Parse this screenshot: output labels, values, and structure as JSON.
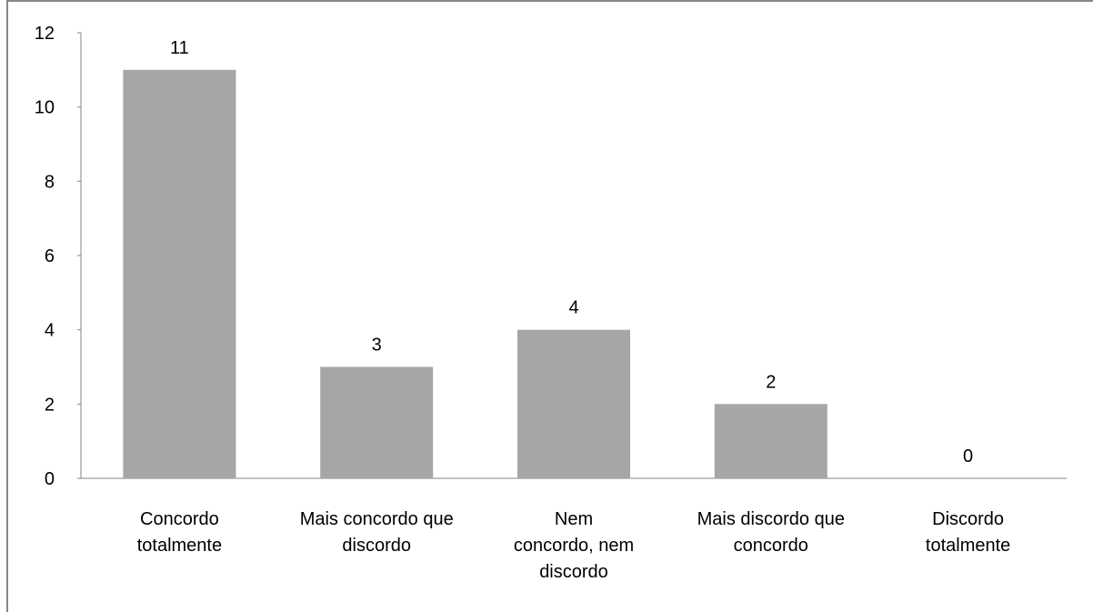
{
  "chart_data": {
    "type": "bar",
    "title": "",
    "xlabel": "",
    "ylabel": "",
    "categories": [
      [
        "Concordo",
        "totalmente"
      ],
      [
        "Mais concordo que",
        "discordo"
      ],
      [
        "Nem",
        "concordo, nem",
        "discordo"
      ],
      [
        "Mais discordo que",
        "concordo"
      ],
      [
        "Discordo",
        "totalmente"
      ]
    ],
    "values": [
      11,
      3,
      4,
      2,
      0
    ],
    "data_labels": [
      "11",
      "3",
      "4",
      "2",
      "0"
    ],
    "ylim": [
      0,
      12
    ],
    "yticks": [
      "0",
      "2",
      "4",
      "6",
      "8",
      "10",
      "12"
    ],
    "grid": false,
    "legend": "none",
    "bar_color": "#a6a6a6",
    "axis_color": "#868686"
  }
}
